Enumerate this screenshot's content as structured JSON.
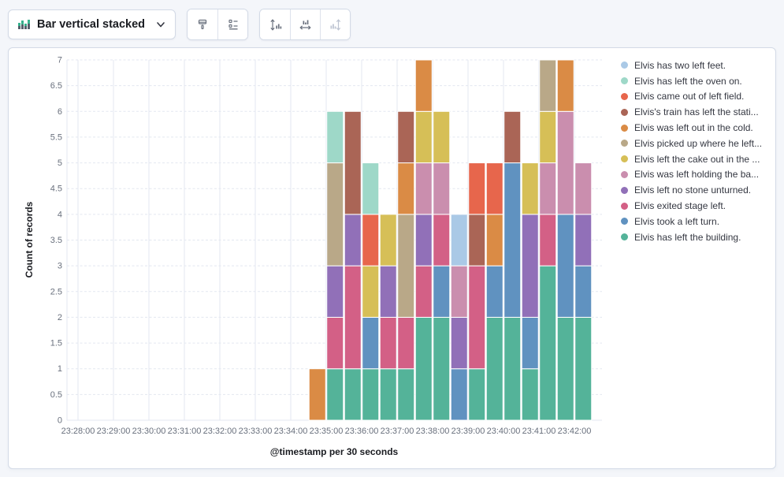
{
  "toolbar": {
    "chart_type_selector": {
      "label": "Bar vertical stacked"
    },
    "buttons": [
      {
        "name": "brush",
        "disabled": false
      },
      {
        "name": "legend-settings",
        "disabled": false
      },
      {
        "name": "y-axis-settings",
        "disabled": false
      },
      {
        "name": "x-axis-settings",
        "disabled": false
      },
      {
        "name": "secondary-y-axis-settings",
        "disabled": true
      }
    ]
  },
  "colors": {
    "icon_gray": "#69707D",
    "icon_disabled": "#BCC3D1",
    "grid": "#E3E7F0",
    "tick_text": "#69707D",
    "title_text": "#1A1C21",
    "mini_icon_green": "#36B28D",
    "mini_icon_gray": "#545E6A"
  },
  "chart_data": {
    "type": "bar",
    "stacked": true,
    "orientation": "vertical",
    "xlabel": "@timestamp per 30 seconds",
    "ylabel": "Count of records",
    "ylim": [
      0,
      7
    ],
    "y_tick_step": 0.5,
    "grid": {
      "vertical": "solid",
      "horizontal": "dashed"
    },
    "legend_position": "right",
    "x_tick_labels": [
      "23:28:00",
      "23:29:00",
      "23:30:00",
      "23:31:00",
      "23:32:00",
      "23:33:00",
      "23:34:00",
      "23:35:00",
      "23:36:00",
      "23:37:00",
      "23:38:00",
      "23:39:00",
      "23:40:00",
      "23:41:00",
      "23:42:00"
    ],
    "categories": [
      "23:34:30",
      "23:35:00",
      "23:35:30",
      "23:36:00",
      "23:36:30",
      "23:37:00",
      "23:37:30",
      "23:38:00",
      "23:38:30",
      "23:39:00",
      "23:39:30",
      "23:40:00",
      "23:40:30",
      "23:41:00",
      "23:41:30",
      "23:42:00"
    ],
    "series": [
      {
        "name": "Elvis has left the building.",
        "color": "#54B399",
        "values": [
          0,
          1,
          1,
          1,
          1,
          1,
          2,
          2,
          0,
          1,
          2,
          2,
          1,
          3,
          2,
          2
        ]
      },
      {
        "name": "Elvis took a left turn.",
        "color": "#6092C0",
        "values": [
          0,
          0,
          0,
          1,
          0,
          0,
          0,
          1,
          1,
          0,
          1,
          3,
          1,
          0,
          2,
          1
        ]
      },
      {
        "name": "Elvis exited stage left.",
        "color": "#D36086",
        "values": [
          0,
          1,
          2,
          0,
          1,
          1,
          1,
          1,
          0,
          2,
          0,
          0,
          0,
          1,
          0,
          0
        ]
      },
      {
        "name": "Elvis left no stone unturned.",
        "color": "#9170B8",
        "values": [
          0,
          1,
          1,
          0,
          1,
          0,
          1,
          0,
          1,
          0,
          0,
          0,
          2,
          0,
          0,
          1
        ]
      },
      {
        "name": "Elvis was left holding the ba...",
        "color": "#CA8EAE",
        "values": [
          0,
          0,
          0,
          0,
          0,
          0,
          1,
          1,
          1,
          0,
          0,
          0,
          0,
          1,
          2,
          1
        ]
      },
      {
        "name": "Elvis left the cake out in the ...",
        "color": "#D6BF57",
        "values": [
          0,
          0,
          0,
          1,
          1,
          0,
          1,
          1,
          0,
          0,
          0,
          0,
          1,
          1,
          0,
          0
        ]
      },
      {
        "name": "Elvis picked up where he left...",
        "color": "#B9A888",
        "values": [
          0,
          2,
          0,
          0,
          0,
          2,
          0,
          0,
          0,
          0,
          0,
          0,
          0,
          1,
          0,
          0
        ]
      },
      {
        "name": "Elvis was left out in the cold.",
        "color": "#DA8B45",
        "values": [
          1,
          0,
          0,
          0,
          0,
          1,
          1,
          0,
          0,
          0,
          1,
          0,
          0,
          0,
          1,
          0
        ]
      },
      {
        "name": "Elvis's train has left the stati...",
        "color": "#AA6556",
        "values": [
          0,
          0,
          2,
          0,
          0,
          1,
          0,
          0,
          0,
          1,
          0,
          1,
          0,
          0,
          0,
          0
        ]
      },
      {
        "name": "Elvis came out of left field.",
        "color": "#E7664C",
        "values": [
          0,
          0,
          0,
          1,
          0,
          0,
          0,
          0,
          0,
          1,
          1,
          0,
          0,
          0,
          0,
          0
        ]
      },
      {
        "name": "Elvis has left the oven on.",
        "color": "#9ED8C8",
        "values": [
          0,
          1,
          0,
          1,
          0,
          0,
          0,
          0,
          0,
          0,
          0,
          0,
          0,
          0,
          0,
          0
        ]
      },
      {
        "name": "Elvis has two left feet.",
        "color": "#AAC9E6",
        "values": [
          0,
          0,
          0,
          0,
          0,
          0,
          0,
          0,
          1,
          0,
          0,
          0,
          0,
          0,
          0,
          0
        ]
      }
    ]
  },
  "legend": {
    "items": [
      {
        "label": "Elvis has two left feet.",
        "color": "#AAC9E6"
      },
      {
        "label": "Elvis has left the oven on.",
        "color": "#9ED8C8"
      },
      {
        "label": "Elvis came out of left field.",
        "color": "#E7664C"
      },
      {
        "label": "Elvis's train has left the stati...",
        "color": "#AA6556"
      },
      {
        "label": "Elvis was left out in the cold.",
        "color": "#DA8B45"
      },
      {
        "label": "Elvis picked up where he left...",
        "color": "#B9A888"
      },
      {
        "label": "Elvis left the cake out in the ...",
        "color": "#D6BF57"
      },
      {
        "label": "Elvis was left holding the ba...",
        "color": "#CA8EAE"
      },
      {
        "label": "Elvis left no stone unturned.",
        "color": "#9170B8"
      },
      {
        "label": "Elvis exited stage left.",
        "color": "#D36086"
      },
      {
        "label": "Elvis took a left turn.",
        "color": "#6092C0"
      },
      {
        "label": "Elvis has left the building.",
        "color": "#54B399"
      }
    ]
  }
}
